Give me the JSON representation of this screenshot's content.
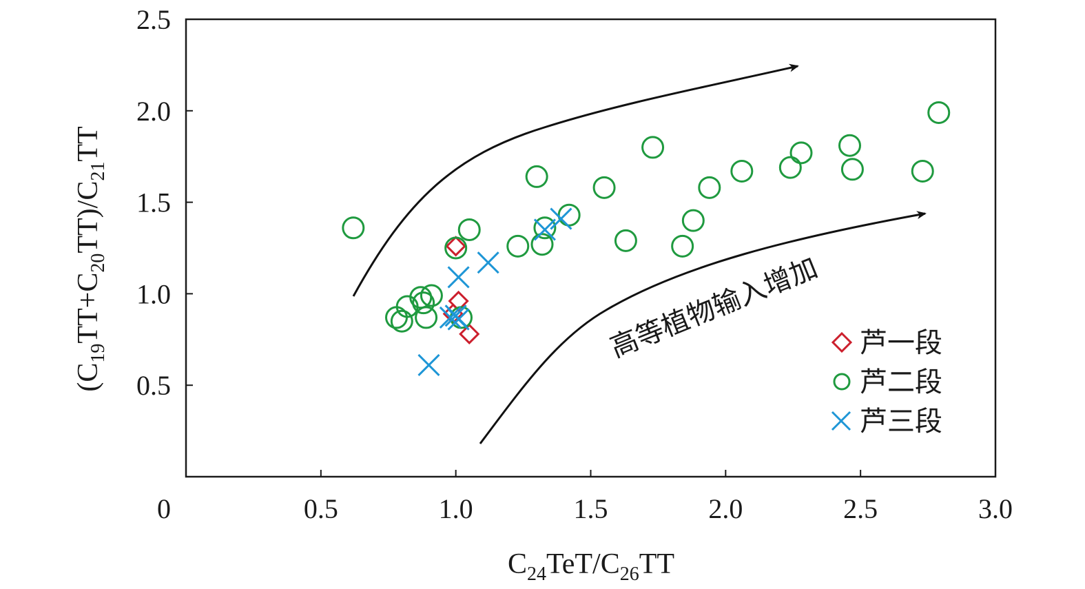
{
  "chart_data": {
    "type": "scatter",
    "title": "",
    "xlabel": {
      "pre": "C",
      "sub1": "24",
      "mid": "TeT/C",
      "sub2": "26",
      "post": "TT"
    },
    "ylabel": {
      "p1": "(C",
      "s1": "19",
      "p2": "TT+C",
      "s2": "20",
      "p3": "TT)/C",
      "s3": "21",
      "p4": "TT"
    },
    "xlim": [
      0,
      3.0
    ],
    "ylim": [
      0,
      2.5
    ],
    "xticks": [
      "0",
      "0.5",
      "1.0",
      "1.5",
      "2.0",
      "2.5",
      "3.0"
    ],
    "yticks": [
      "0.5",
      "1.0",
      "1.5",
      "2.0",
      "2.5"
    ],
    "grid": false,
    "legend_position": "bottom-right",
    "annotation": "高等植物输入增加",
    "series": [
      {
        "name": "芦一段",
        "marker": "diamond",
        "color": "#cc1f2d",
        "points": [
          [
            1.0,
            1.26
          ],
          [
            1.01,
            0.96
          ],
          [
            0.99,
            0.89
          ],
          [
            1.05,
            0.78
          ]
        ]
      },
      {
        "name": "芦二段",
        "marker": "circle",
        "color": "#1f9a3f",
        "points": [
          [
            0.62,
            1.36
          ],
          [
            0.78,
            0.87
          ],
          [
            0.8,
            0.85
          ],
          [
            0.82,
            0.93
          ],
          [
            0.87,
            0.98
          ],
          [
            0.88,
            0.95
          ],
          [
            0.89,
            0.87
          ],
          [
            0.91,
            0.99
          ],
          [
            1.0,
            1.25
          ],
          [
            1.02,
            0.87
          ],
          [
            1.05,
            1.35
          ],
          [
            1.23,
            1.26
          ],
          [
            1.3,
            1.64
          ],
          [
            1.32,
            1.27
          ],
          [
            1.33,
            1.36
          ],
          [
            1.42,
            1.43
          ],
          [
            1.55,
            1.58
          ],
          [
            1.63,
            1.29
          ],
          [
            1.73,
            1.8
          ],
          [
            1.84,
            1.26
          ],
          [
            1.88,
            1.4
          ],
          [
            1.94,
            1.58
          ],
          [
            2.06,
            1.67
          ],
          [
            2.24,
            1.69
          ],
          [
            2.28,
            1.77
          ],
          [
            2.46,
            1.81
          ],
          [
            2.47,
            1.68
          ],
          [
            2.73,
            1.67
          ],
          [
            2.79,
            1.99
          ]
        ]
      },
      {
        "name": "芦三段",
        "marker": "x",
        "color": "#1e96d6",
        "points": [
          [
            0.9,
            0.61
          ],
          [
            0.98,
            0.87
          ],
          [
            1.0,
            0.88
          ],
          [
            1.01,
            0.86
          ],
          [
            1.01,
            1.09
          ],
          [
            1.12,
            1.17
          ],
          [
            1.33,
            1.35
          ],
          [
            1.39,
            1.41
          ]
        ]
      }
    ]
  },
  "colors": {
    "axis": "#1a1a1a",
    "arrow": "#111111"
  }
}
